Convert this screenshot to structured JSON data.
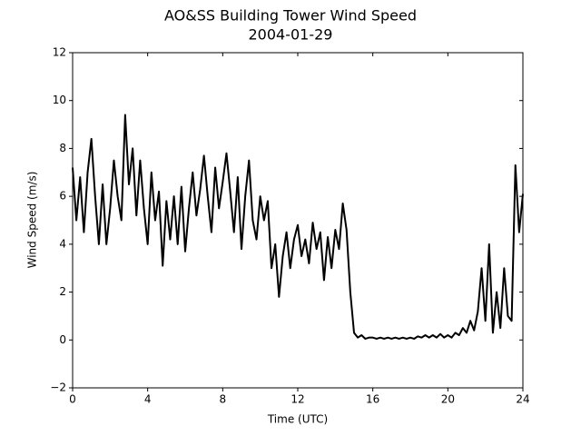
{
  "chart_data": {
    "type": "line",
    "title": "AO&SS Building Tower Wind Speed",
    "subtitle": "2004-01-29",
    "x_label": "Time (UTC)",
    "y_label": "Wind Speed (m/s)",
    "xlim": [
      0,
      24
    ],
    "ylim": [
      -2,
      12
    ],
    "xticks": [
      0,
      4,
      8,
      12,
      16,
      20,
      24
    ],
    "yticks": [
      {
        "value": -2,
        "label": "−2"
      },
      0,
      2,
      4,
      6,
      8,
      10,
      12
    ],
    "grid": false,
    "x": [
      0,
      0.2,
      0.4,
      0.6,
      0.8,
      1,
      1.2,
      1.4,
      1.6,
      1.8,
      2,
      2.2,
      2.4,
      2.6,
      2.8,
      3,
      3.2,
      3.4,
      3.6,
      3.8,
      4,
      4.2,
      4.4,
      4.6,
      4.8,
      5,
      5.2,
      5.4,
      5.6,
      5.8,
      6,
      6.2,
      6.4,
      6.6,
      6.8,
      7,
      7.2,
      7.4,
      7.6,
      7.8,
      8,
      8.2,
      8.4,
      8.6,
      8.8,
      9,
      9.2,
      9.4,
      9.6,
      9.8,
      10,
      10.2,
      10.4,
      10.6,
      10.8,
      11,
      11.2,
      11.4,
      11.6,
      11.8,
      12,
      12.2,
      12.4,
      12.6,
      12.8,
      13,
      13.2,
      13.4,
      13.6,
      13.8,
      14,
      14.2,
      14.4,
      14.6,
      14.8,
      15,
      15.2,
      15.4,
      15.6,
      15.8,
      16,
      16.2,
      16.4,
      16.6,
      16.8,
      17,
      17.2,
      17.4,
      17.6,
      17.8,
      18,
      18.2,
      18.4,
      18.6,
      18.8,
      19,
      19.2,
      19.4,
      19.6,
      19.8,
      20,
      20.2,
      20.4,
      20.6,
      20.8,
      21,
      21.2,
      21.4,
      21.6,
      21.8,
      22,
      22.2,
      22.4,
      22.6,
      22.8,
      23,
      23.2,
      23.4,
      23.6,
      23.8,
      24
    ],
    "series": [
      {
        "name": "Wind Speed",
        "color": "#000000",
        "values": [
          7.2,
          5.0,
          6.8,
          4.5,
          7.0,
          8.4,
          6.0,
          4.0,
          6.5,
          4.0,
          5.5,
          7.5,
          6.0,
          5.0,
          9.4,
          6.5,
          8.0,
          5.2,
          7.5,
          5.5,
          4.0,
          7.0,
          5.0,
          6.2,
          3.1,
          5.8,
          4.2,
          6.0,
          4.0,
          6.4,
          3.7,
          5.5,
          7.0,
          5.2,
          6.3,
          7.7,
          6.0,
          4.5,
          7.2,
          5.5,
          6.6,
          7.8,
          6.2,
          4.5,
          6.8,
          3.8,
          6.0,
          7.5,
          5.0,
          4.2,
          6.0,
          5.0,
          5.8,
          3.0,
          4.0,
          1.8,
          3.5,
          4.5,
          3.0,
          4.2,
          4.8,
          3.5,
          4.2,
          3.2,
          4.9,
          3.8,
          4.5,
          2.5,
          4.3,
          3.0,
          4.6,
          3.8,
          5.7,
          4.6,
          2.0,
          0.3,
          0.1,
          0.2,
          0.05,
          0.1,
          0.1,
          0.05,
          0.1,
          0.05,
          0.1,
          0.05,
          0.1,
          0.05,
          0.1,
          0.05,
          0.1,
          0.05,
          0.15,
          0.1,
          0.2,
          0.1,
          0.2,
          0.1,
          0.25,
          0.1,
          0.2,
          0.1,
          0.3,
          0.2,
          0.5,
          0.3,
          0.8,
          0.4,
          1.2,
          3.0,
          0.8,
          4.0,
          0.3,
          2.0,
          0.5,
          3.0,
          1.0,
          0.8,
          7.3,
          4.5,
          6.1
        ]
      }
    ]
  }
}
